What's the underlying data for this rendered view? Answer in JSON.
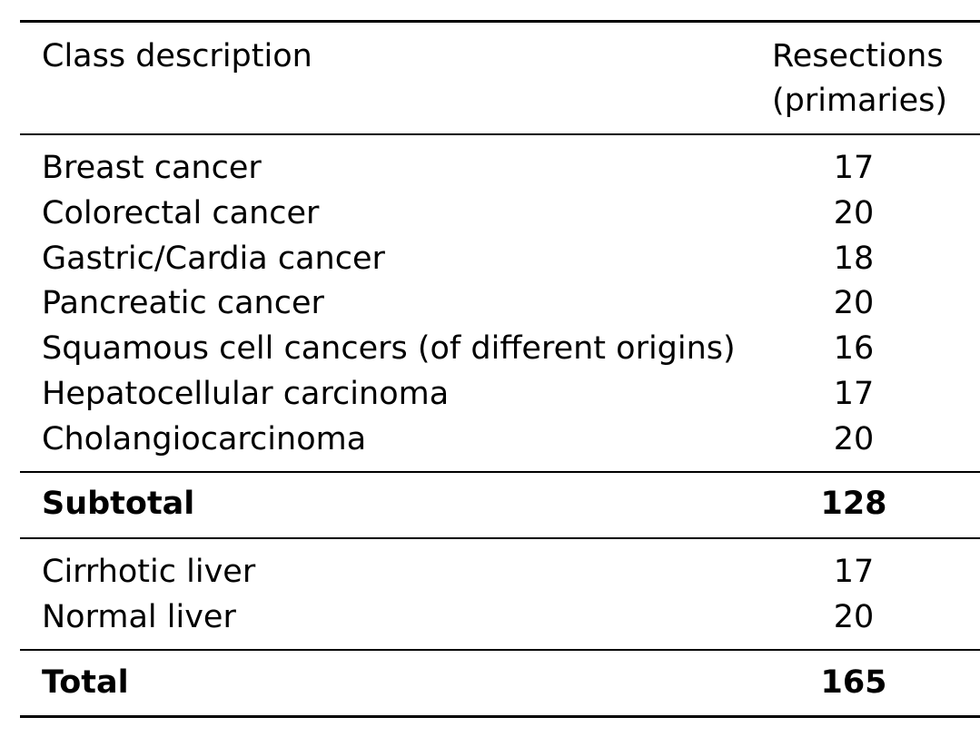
{
  "table": {
    "header": {
      "class_description": "Class description",
      "resections_line1": "Resections",
      "resections_line2": "(primaries)"
    },
    "cancer_rows": [
      {
        "label": "Breast cancer",
        "value": "17"
      },
      {
        "label": "Colorectal cancer",
        "value": "20"
      },
      {
        "label": "Gastric/Cardia cancer",
        "value": "18"
      },
      {
        "label": "Pancreatic cancer",
        "value": "20"
      },
      {
        "label": "Squamous cell cancers (of different origins)",
        "value": "16"
      },
      {
        "label": "Hepatocellular carcinoma",
        "value": "17"
      },
      {
        "label": "Cholangiocarcinoma",
        "value": "20"
      }
    ],
    "subtotal": {
      "label": "Subtotal",
      "value": "128"
    },
    "liver_rows": [
      {
        "label": "Cirrhotic liver",
        "value": "17"
      },
      {
        "label": "Normal liver",
        "value": "20"
      }
    ],
    "total": {
      "label": "Total",
      "value": "165"
    }
  }
}
